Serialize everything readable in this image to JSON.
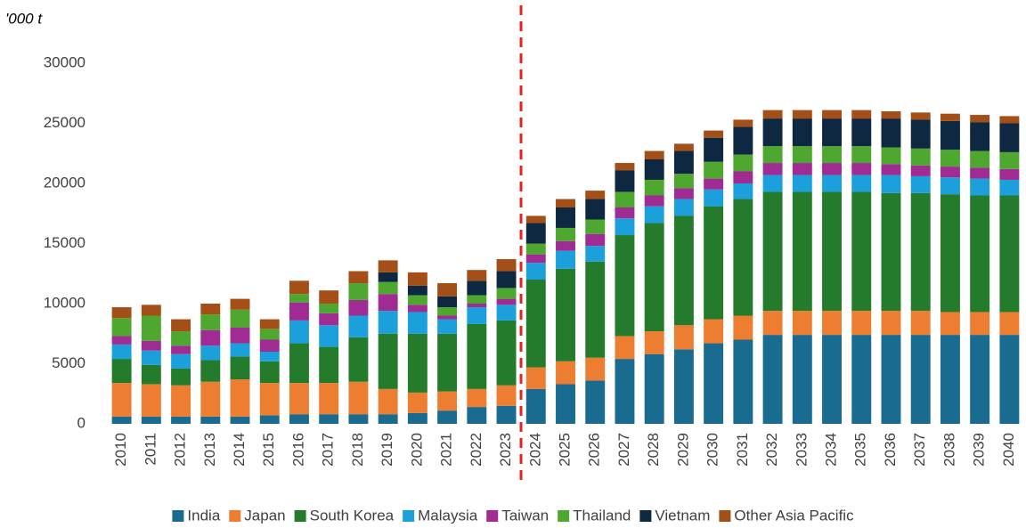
{
  "chart_data": {
    "type": "stacked_bar",
    "y_axis_label": "'000 t",
    "categories": [
      "2010",
      "2011",
      "2012",
      "2013",
      "2014",
      "2015",
      "2016",
      "2017",
      "2018",
      "2019",
      "2020",
      "2021",
      "2022",
      "2023",
      "2024",
      "2025",
      "2026",
      "2027",
      "2028",
      "2029",
      "2030",
      "2031",
      "2032",
      "2033",
      "2034",
      "2035",
      "2036",
      "2037",
      "2038",
      "2039",
      "2040"
    ],
    "series": [
      {
        "name": "India",
        "color": "#196b8f",
        "values": [
          600,
          600,
          600,
          600,
          600,
          700,
          800,
          800,
          800,
          800,
          900,
          1100,
          1400,
          1500,
          2900,
          3300,
          3600,
          5400,
          5800,
          6200,
          6700,
          7000,
          7400,
          7400,
          7400,
          7400,
          7400,
          7400,
          7400,
          7400,
          7400
        ]
      },
      {
        "name": "Japan",
        "color": "#ed7d31",
        "values": [
          2800,
          2700,
          2600,
          2900,
          3100,
          2700,
          2600,
          2600,
          2700,
          2100,
          1700,
          1600,
          1500,
          1700,
          1800,
          1900,
          1900,
          1900,
          1900,
          2000,
          2000,
          2000,
          2000,
          2000,
          2000,
          2000,
          2000,
          2000,
          1900,
          1900,
          1900
        ]
      },
      {
        "name": "South Korea",
        "color": "#237b2b",
        "values": [
          2000,
          1600,
          1400,
          1800,
          1900,
          1800,
          3300,
          3000,
          3700,
          4600,
          4900,
          4800,
          5400,
          5400,
          7300,
          7700,
          8000,
          8400,
          9000,
          9100,
          9400,
          9700,
          9900,
          9900,
          9900,
          9900,
          9800,
          9800,
          9800,
          9700,
          9700
        ]
      },
      {
        "name": "Malaysia",
        "color": "#1ca0dc",
        "values": [
          1200,
          1200,
          1200,
          1200,
          1100,
          800,
          1900,
          1800,
          1800,
          1900,
          1800,
          1200,
          1400,
          1300,
          1400,
          1500,
          1300,
          1400,
          1400,
          1400,
          1400,
          1300,
          1400,
          1400,
          1400,
          1400,
          1500,
          1400,
          1400,
          1400,
          1300
        ]
      },
      {
        "name": "Taiwan",
        "color": "#a02b93",
        "values": [
          700,
          800,
          700,
          1300,
          1300,
          1000,
          1500,
          1000,
          1300,
          1400,
          600,
          300,
          300,
          500,
          700,
          800,
          1000,
          900,
          900,
          900,
          900,
          1000,
          1000,
          1000,
          1000,
          1000,
          900,
          900,
          900,
          900,
          900
        ]
      },
      {
        "name": "Thailand",
        "color": "#4ea72e",
        "values": [
          1500,
          2100,
          1200,
          1300,
          1500,
          900,
          700,
          800,
          1400,
          1000,
          800,
          700,
          700,
          900,
          900,
          1100,
          1200,
          1300,
          1300,
          1200,
          1400,
          1400,
          1400,
          1400,
          1400,
          1400,
          1400,
          1400,
          1400,
          1400,
          1400
        ]
      },
      {
        "name": "Vietnam",
        "color": "#0e2841",
        "values": [
          0,
          0,
          0,
          0,
          0,
          0,
          0,
          0,
          0,
          800,
          800,
          900,
          1200,
          1400,
          1700,
          1700,
          1700,
          1800,
          1700,
          1900,
          2000,
          2300,
          2300,
          2300,
          2300,
          2300,
          2400,
          2400,
          2400,
          2400,
          2400
        ]
      },
      {
        "name": "Other Asia Pacific",
        "color": "#a34f17",
        "values": [
          900,
          900,
          1000,
          900,
          900,
          800,
          1100,
          1100,
          1000,
          1000,
          1100,
          1100,
          900,
          1000,
          600,
          700,
          700,
          600,
          700,
          600,
          600,
          600,
          700,
          700,
          700,
          700,
          600,
          600,
          600,
          600,
          600
        ]
      }
    ],
    "ylim": [
      0,
      30000
    ],
    "yticks": [
      0,
      5000,
      10000,
      15000,
      20000,
      25000,
      30000
    ],
    "grid": false,
    "legend": "bottom"
  }
}
